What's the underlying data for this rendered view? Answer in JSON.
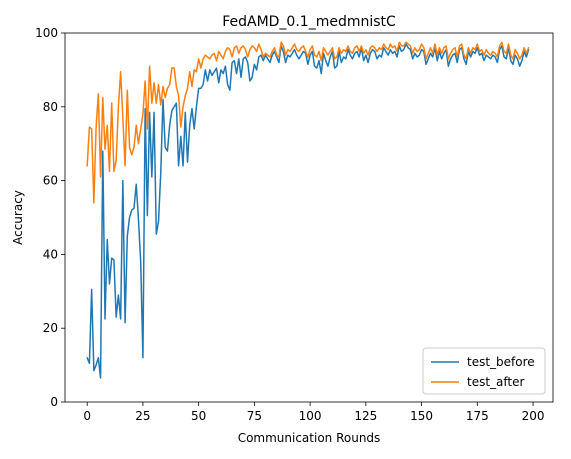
{
  "chart_data": {
    "type": "line",
    "title": "FedAMD_0.1_medmnistC",
    "xlabel": "Communication Rounds",
    "ylabel": "Accuracy",
    "xlim": [
      -9.95,
      208.95
    ],
    "ylim": [
      0,
      100
    ],
    "xticks": [
      0,
      25,
      50,
      75,
      100,
      125,
      150,
      175,
      200
    ],
    "yticks": [
      0,
      20,
      40,
      60,
      80,
      100
    ],
    "grid": false,
    "legend_position": "lower-right",
    "series": [
      {
        "name": "test_before",
        "color": "#1f77b4",
        "values": [
          12,
          10.5,
          30.5,
          8.5,
          10,
          12,
          6.5,
          68,
          22.5,
          44,
          32,
          39,
          38.5,
          23,
          29,
          22.5,
          60,
          21.5,
          45,
          50,
          52,
          52.5,
          59,
          49.5,
          38,
          12,
          79.5,
          50.5,
          78.5,
          61,
          78.5,
          45.5,
          49,
          62,
          82,
          69,
          68,
          75,
          79,
          80,
          81,
          64,
          72,
          64,
          78.5,
          65,
          75,
          79.5,
          74,
          80,
          85,
          85,
          86,
          90,
          87,
          90,
          88.5,
          89.5,
          90.5,
          86.5,
          90,
          89,
          91,
          86,
          84.5,
          92,
          92.5,
          89,
          93,
          88,
          93,
          93.5,
          92,
          87,
          88,
          91.5,
          90,
          93.5,
          94,
          92.5,
          94,
          93,
          92,
          94,
          95,
          93.5,
          92,
          96.5,
          95,
          92,
          94,
          93.5,
          94.5,
          95.5,
          94,
          93,
          94,
          95,
          94.5,
          91.5,
          94,
          95,
          91,
          90.5,
          92.5,
          89,
          94.5,
          92.5,
          91,
          93.5,
          95,
          90.5,
          91,
          95,
          92,
          93.5,
          93,
          95.5,
          94,
          93,
          94.5,
          95,
          93.5,
          96,
          92.5,
          94,
          92,
          94.5,
          95.5,
          95,
          93,
          94,
          93.5,
          96,
          95,
          94,
          95.5,
          94.5,
          95,
          93.5,
          96.5,
          95,
          95.5,
          97,
          96,
          95.5,
          93,
          94.5,
          93.5,
          94,
          95.5,
          95,
          91.5,
          93,
          94.5,
          93.5,
          96,
          92.5,
          95,
          93,
          94.5,
          95.5,
          91,
          93,
          94,
          94.5,
          92,
          95.5,
          96,
          93,
          91.5,
          95,
          93.5,
          95,
          94.5,
          96,
          94,
          94.5,
          92.5,
          94,
          93.5,
          93,
          94,
          93.5,
          92,
          95.5,
          96.5,
          93.5,
          93,
          96,
          92.5,
          91.5,
          94,
          93,
          91,
          92.5,
          95,
          93.5,
          95.5
        ]
      },
      {
        "name": "test_after",
        "color": "#ff7f0e",
        "values": [
          64,
          74.5,
          74,
          54,
          74.5,
          83.5,
          61,
          82.5,
          68.5,
          75,
          62.5,
          81,
          62.5,
          65.5,
          80,
          89.5,
          77,
          64,
          84.5,
          69,
          67,
          69,
          75,
          70,
          74,
          78,
          87,
          74,
          91,
          81,
          86.5,
          81,
          86,
          80.5,
          85.5,
          82.5,
          85,
          86,
          90.5,
          90.5,
          85.5,
          83,
          74.5,
          80,
          83,
          85,
          89.5,
          85.5,
          90,
          89.5,
          93,
          90.5,
          93,
          94,
          93.5,
          93,
          94,
          94.5,
          92.5,
          95,
          94,
          93,
          95,
          96,
          95.5,
          93.5,
          96,
          96.5,
          94.5,
          96,
          96.5,
          95.5,
          93.5,
          95.5,
          96.5,
          96,
          95,
          97,
          95.5,
          93.5,
          94.5,
          94,
          93.5,
          95,
          96,
          94,
          93.5,
          97.5,
          96.5,
          94,
          95.5,
          95,
          96,
          97,
          95.5,
          95,
          96,
          96.5,
          95,
          93.5,
          95.5,
          96.5,
          94,
          93.5,
          95,
          92.5,
          96,
          95,
          94,
          95,
          96,
          93,
          93.5,
          96,
          94.5,
          95.5,
          95,
          96.5,
          95,
          94.5,
          96,
          96.5,
          95,
          96.5,
          94.5,
          95.5,
          94,
          96,
          96.5,
          96,
          95,
          96,
          95.5,
          97,
          96,
          95.5,
          97,
          96,
          96.5,
          95,
          97.5,
          96.5,
          96.5,
          97.5,
          97,
          96.5,
          94.5,
          96,
          95,
          95.5,
          97,
          96,
          93,
          94.5,
          96,
          94.5,
          97,
          94,
          96,
          94.5,
          96,
          96.5,
          93,
          94.5,
          95.5,
          96,
          93.5,
          96.5,
          97,
          94,
          93,
          96,
          94.5,
          96,
          95.5,
          97,
          95,
          95.5,
          94,
          95.5,
          94.5,
          94,
          95,
          94.5,
          93.5,
          96.5,
          97.5,
          95,
          94.5,
          97,
          94,
          93,
          95.5,
          94.5,
          93,
          94,
          96,
          94.5,
          96
        ]
      }
    ]
  }
}
